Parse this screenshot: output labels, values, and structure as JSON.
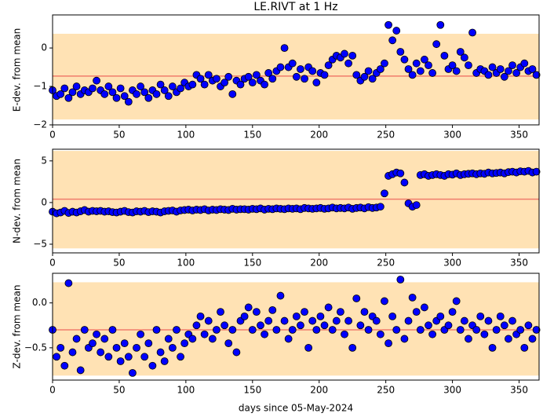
{
  "chart_data": [
    {
      "type": "scatter",
      "title": "LE.RIVT at 1 Hz",
      "ylabel": "E-dev. from mean",
      "x": [
        0,
        3,
        6,
        9,
        12,
        15,
        18,
        21,
        24,
        27,
        30,
        33,
        36,
        39,
        42,
        45,
        48,
        51,
        54,
        57,
        60,
        63,
        66,
        69,
        72,
        75,
        78,
        81,
        84,
        87,
        90,
        93,
        96,
        99,
        102,
        105,
        108,
        111,
        114,
        117,
        120,
        123,
        126,
        129,
        132,
        135,
        138,
        141,
        144,
        147,
        150,
        153,
        156,
        159,
        162,
        165,
        168,
        171,
        174,
        177,
        180,
        183,
        186,
        189,
        192,
        195,
        198,
        201,
        204,
        207,
        210,
        213,
        216,
        219,
        222,
        225,
        228,
        231,
        234,
        237,
        240,
        243,
        246,
        249,
        252,
        255,
        258,
        261,
        264,
        267,
        270,
        273,
        276,
        279,
        282,
        285,
        288,
        291,
        294,
        297,
        300,
        303,
        306,
        309,
        312,
        315,
        318,
        321,
        324,
        327,
        330,
        333,
        336,
        339,
        342,
        345,
        348,
        351,
        354,
        357,
        360,
        363
      ],
      "values": [
        -1.1,
        -1.25,
        -1.2,
        -1.05,
        -1.3,
        -1.15,
        -1.0,
        -1.2,
        -1.1,
        -1.15,
        -1.05,
        -0.85,
        -1.1,
        -1.2,
        -1.0,
        -1.15,
        -1.3,
        -1.05,
        -1.25,
        -1.4,
        -1.1,
        -1.2,
        -1.0,
        -1.15,
        -1.3,
        -1.1,
        -1.2,
        -0.95,
        -1.1,
        -1.25,
        -1.0,
        -1.15,
        -1.05,
        -0.9,
        -1.0,
        -0.95,
        -0.7,
        -0.8,
        -0.95,
        -0.7,
        -0.85,
        -0.8,
        -1.0,
        -0.9,
        -0.75,
        -1.2,
        -0.85,
        -0.95,
        -0.8,
        -0.75,
        -0.9,
        -0.7,
        -0.85,
        -0.95,
        -0.65,
        -0.8,
        -0.6,
        -0.5,
        0.0,
        -0.5,
        -0.4,
        -0.75,
        -0.55,
        -0.8,
        -0.5,
        -0.6,
        -0.9,
        -0.65,
        -0.7,
        -0.45,
        -0.3,
        -0.2,
        -0.25,
        -0.15,
        -0.4,
        -0.2,
        -0.7,
        -0.85,
        -0.75,
        -0.6,
        -0.8,
        -0.65,
        -0.55,
        -0.4,
        0.6,
        0.2,
        0.45,
        -0.1,
        -0.3,
        -0.55,
        -0.7,
        -0.4,
        -0.6,
        -0.3,
        -0.45,
        -0.65,
        0.1,
        0.6,
        -0.2,
        -0.55,
        -0.45,
        -0.6,
        -0.1,
        -0.25,
        -0.45,
        0.4,
        -0.65,
        -0.55,
        -0.6,
        -0.7,
        -0.5,
        -0.65,
        -0.55,
        -0.75,
        -0.6,
        -0.45,
        -0.65,
        -0.5,
        -0.4,
        -0.6,
        -0.55,
        -0.7
      ],
      "color": "#0000ff",
      "band": [
        -1.86,
        0.37
      ],
      "band_color": "#ffe2b4",
      "mean": -0.73,
      "mean_color": "#f07c6c",
      "xlim": [
        0,
        365
      ],
      "ylim": [
        -2,
        0.86
      ],
      "xticks": [
        0,
        50,
        100,
        150,
        200,
        250,
        300,
        350
      ],
      "yticks": [
        {
          "value": -2,
          "label": "−2"
        },
        {
          "value": -1,
          "label": "−1"
        },
        0
      ]
    },
    {
      "type": "scatter",
      "ylabel": "N-dev. from mean",
      "x": [
        0,
        3,
        6,
        9,
        12,
        15,
        18,
        21,
        24,
        27,
        30,
        33,
        36,
        39,
        42,
        45,
        48,
        51,
        54,
        57,
        60,
        63,
        66,
        69,
        72,
        75,
        78,
        81,
        84,
        87,
        90,
        93,
        96,
        99,
        102,
        105,
        108,
        111,
        114,
        117,
        120,
        123,
        126,
        129,
        132,
        135,
        138,
        141,
        144,
        147,
        150,
        153,
        156,
        159,
        162,
        165,
        168,
        171,
        174,
        177,
        180,
        183,
        186,
        189,
        192,
        195,
        198,
        201,
        204,
        207,
        210,
        213,
        216,
        219,
        222,
        225,
        228,
        231,
        234,
        237,
        240,
        243,
        246,
        249,
        252,
        255,
        258,
        261,
        264,
        267,
        270,
        273,
        276,
        279,
        282,
        285,
        288,
        291,
        294,
        297,
        300,
        303,
        306,
        309,
        312,
        315,
        318,
        321,
        324,
        327,
        330,
        333,
        336,
        339,
        342,
        345,
        348,
        351,
        354,
        357,
        360,
        363
      ],
      "values": [
        -1.1,
        -1.3,
        -1.2,
        -1.0,
        -1.25,
        -1.1,
        -1.2,
        -1.05,
        -0.9,
        -1.1,
        -1.0,
        -1.05,
        -1.0,
        -1.1,
        -1.05,
        -1.15,
        -1.2,
        -1.1,
        -1.0,
        -1.15,
        -1.2,
        -1.05,
        -1.1,
        -1.0,
        -1.15,
        -1.05,
        -1.1,
        -1.2,
        -1.05,
        -1.0,
        -0.95,
        -1.1,
        -0.95,
        -0.9,
        -0.85,
        -0.95,
        -0.85,
        -0.9,
        -0.8,
        -0.95,
        -0.85,
        -0.9,
        -0.8,
        -0.85,
        -0.9,
        -0.75,
        -0.85,
        -0.8,
        -0.8,
        -0.85,
        -0.75,
        -0.8,
        -0.7,
        -0.85,
        -0.75,
        -0.8,
        -0.7,
        -0.75,
        -0.8,
        -0.7,
        -0.75,
        -0.7,
        -0.8,
        -0.65,
        -0.7,
        -0.75,
        -0.7,
        -0.65,
        -0.75,
        -0.7,
        -0.6,
        -0.7,
        -0.65,
        -0.7,
        -0.6,
        -0.75,
        -0.65,
        -0.6,
        -0.7,
        -0.55,
        -0.65,
        -0.6,
        -0.5,
        1.1,
        3.2,
        3.4,
        3.6,
        3.5,
        2.4,
        -0.1,
        -0.5,
        -0.3,
        3.3,
        3.4,
        3.2,
        3.3,
        3.4,
        3.3,
        3.2,
        3.4,
        3.35,
        3.5,
        3.3,
        3.4,
        3.45,
        3.5,
        3.4,
        3.5,
        3.45,
        3.6,
        3.5,
        3.55,
        3.6,
        3.5,
        3.65,
        3.7,
        3.6,
        3.75,
        3.7,
        3.8,
        3.6,
        3.7
      ],
      "color": "#0000ff",
      "band": [
        -5.5,
        6.2
      ],
      "band_color": "#ffe2b4",
      "mean": 0.4,
      "mean_color": "#f07c6c",
      "xlim": [
        0,
        365
      ],
      "ylim": [
        -6.04,
        6.4
      ],
      "xticks": [
        0,
        50,
        100,
        150,
        200,
        250,
        300,
        350
      ],
      "yticks": [
        {
          "value": -5,
          "label": "−5"
        },
        0,
        5
      ]
    },
    {
      "type": "scatter",
      "ylabel": "Z-dev. from mean",
      "xlabel": "days since 05-May-2024",
      "x": [
        0,
        3,
        6,
        9,
        12,
        15,
        18,
        21,
        24,
        27,
        30,
        33,
        36,
        39,
        42,
        45,
        48,
        51,
        54,
        57,
        60,
        63,
        66,
        69,
        72,
        75,
        78,
        81,
        84,
        87,
        90,
        93,
        96,
        99,
        102,
        105,
        108,
        111,
        114,
        117,
        120,
        123,
        126,
        129,
        132,
        135,
        138,
        141,
        144,
        147,
        150,
        153,
        156,
        159,
        162,
        165,
        168,
        171,
        174,
        177,
        180,
        183,
        186,
        189,
        192,
        195,
        198,
        201,
        204,
        207,
        210,
        213,
        216,
        219,
        222,
        225,
        228,
        231,
        234,
        237,
        240,
        243,
        246,
        249,
        252,
        255,
        258,
        261,
        264,
        267,
        270,
        273,
        276,
        279,
        282,
        285,
        288,
        291,
        294,
        297,
        300,
        303,
        306,
        309,
        312,
        315,
        318,
        321,
        324,
        327,
        330,
        333,
        336,
        339,
        342,
        345,
        348,
        351,
        354,
        357,
        360,
        363
      ],
      "values": [
        -0.3,
        -0.6,
        -0.5,
        -0.7,
        0.22,
        -0.55,
        -0.4,
        -0.75,
        -0.3,
        -0.5,
        -0.45,
        -0.35,
        -0.55,
        -0.4,
        -0.6,
        -0.3,
        -0.5,
        -0.65,
        -0.45,
        -0.6,
        -0.78,
        -0.5,
        -0.35,
        -0.6,
        -0.45,
        -0.7,
        -0.3,
        -0.55,
        -0.65,
        -0.4,
        -0.5,
        -0.3,
        -0.6,
        -0.45,
        -0.35,
        -0.4,
        -0.25,
        -0.15,
        -0.35,
        -0.2,
        -0.4,
        -0.3,
        -0.1,
        -0.25,
        -0.45,
        -0.3,
        -0.55,
        -0.2,
        -0.15,
        -0.05,
        -0.3,
        -0.1,
        -0.25,
        -0.35,
        -0.2,
        -0.08,
        -0.3,
        0.08,
        -0.2,
        -0.4,
        -0.3,
        -0.15,
        -0.25,
        -0.1,
        -0.5,
        -0.2,
        -0.3,
        -0.15,
        -0.25,
        -0.05,
        -0.3,
        -0.2,
        -0.1,
        -0.35,
        -0.2,
        -0.5,
        0.05,
        -0.25,
        -0.1,
        -0.3,
        -0.15,
        -0.2,
        -0.35,
        0.02,
        -0.45,
        -0.15,
        -0.3,
        0.26,
        -0.4,
        -0.2,
        0.06,
        -0.1,
        -0.3,
        -0.05,
        -0.25,
        -0.35,
        -0.2,
        -0.15,
        -0.3,
        -0.25,
        -0.1,
        0.02,
        -0.3,
        -0.2,
        -0.4,
        -0.25,
        -0.3,
        -0.15,
        -0.35,
        -0.2,
        -0.5,
        -0.3,
        -0.15,
        -0.25,
        -0.4,
        -0.2,
        -0.35,
        -0.3,
        -0.5,
        -0.25,
        -0.4,
        -0.3
      ],
      "color": "#0000ff",
      "band": [
        -0.81,
        0.23
      ],
      "band_color": "#ffe2b4",
      "mean": -0.3,
      "mean_color": "#f07c6c",
      "xlim": [
        0,
        365
      ],
      "ylim": [
        -0.86,
        0.33
      ],
      "xticks": [
        0,
        50,
        100,
        150,
        200,
        250,
        300,
        350
      ],
      "yticks": [
        {
          "value": -0.5,
          "label": "−0.5"
        },
        {
          "value": 0,
          "label": "0.0"
        }
      ]
    }
  ]
}
